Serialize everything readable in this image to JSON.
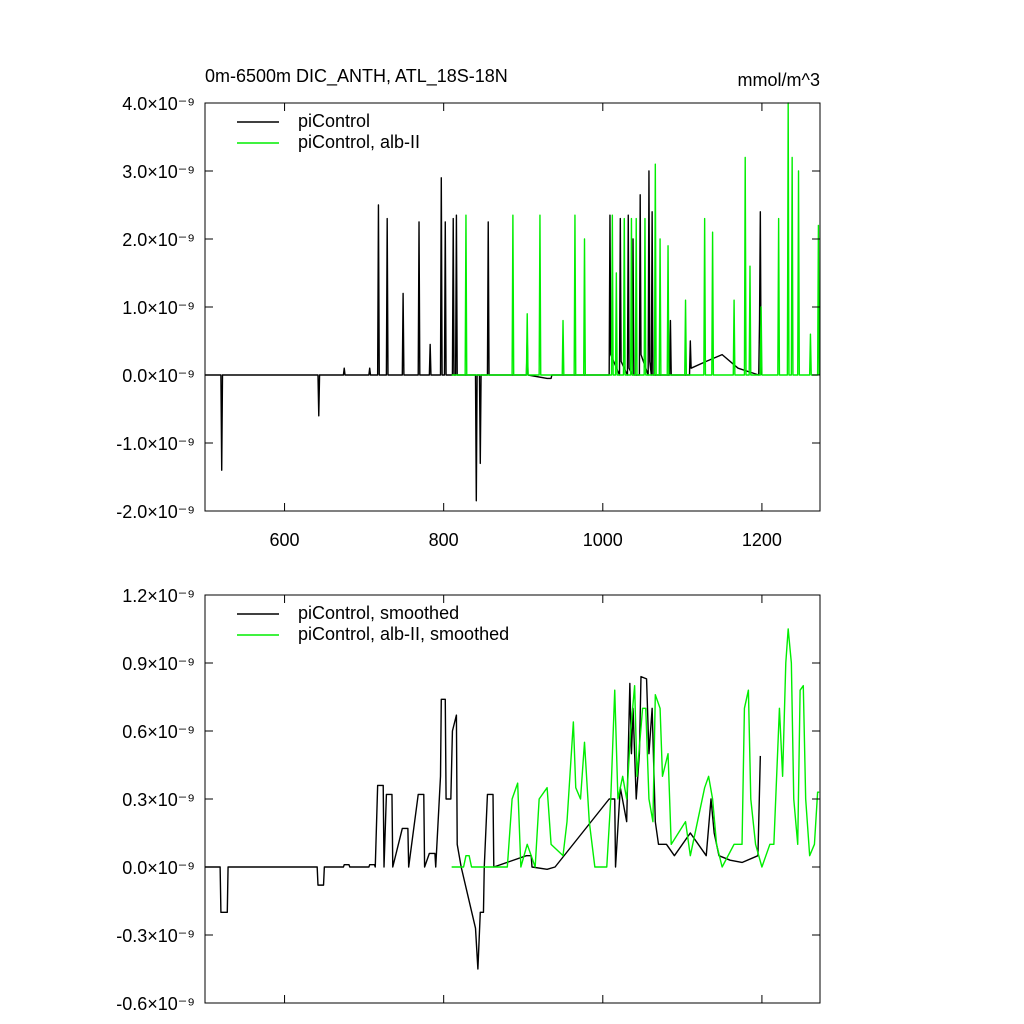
{
  "chart_data": [
    {
      "type": "line",
      "title": "0m-6500m DIC_ANTH, ATL_18S-18N",
      "unit": "mmol/m^3",
      "xlim": [
        500,
        1273
      ],
      "xticks": [
        600,
        800,
        1000,
        1200
      ],
      "ylim": [
        -2e-09,
        4e-09
      ],
      "yticks": [
        {
          "value": -2e-09,
          "label": "-2.0×10⁻⁹"
        },
        {
          "value": -1e-09,
          "label": "-1.0×10⁻⁹"
        },
        {
          "value": 0,
          "label": "0.0×10⁻⁹"
        },
        {
          "value": 1e-09,
          "label": "1.0×10⁻⁹"
        },
        {
          "value": 2e-09,
          "label": "2.0×10⁻⁹"
        },
        {
          "value": 3e-09,
          "label": "3.0×10⁻⁹"
        },
        {
          "value": 4e-09,
          "label": "4.0×10⁻⁹"
        }
      ],
      "legend": "top-left",
      "series": [
        {
          "name": "piControl",
          "color": "#000000",
          "x": [
            500,
            520,
            521,
            522,
            642,
            643,
            644,
            674,
            675,
            676,
            706,
            707,
            708,
            717,
            718,
            719,
            728,
            729,
            730,
            748,
            749,
            750,
            768,
            769,
            770,
            782,
            783,
            784,
            796,
            797,
            798,
            801,
            802,
            803,
            811,
            812,
            813,
            815,
            816,
            817,
            840,
            841,
            842,
            845,
            846,
            847,
            855,
            856,
            857,
            904,
            905,
            906,
            930,
            935,
            936,
            1008,
            1009,
            1010,
            1021,
            1022,
            1023,
            1031,
            1032,
            1033,
            1037,
            1038,
            1039,
            1046,
            1047,
            1048,
            1057,
            1058,
            1059,
            1061,
            1062,
            1063,
            1084,
            1085,
            1086,
            1109,
            1110,
            1111,
            1130,
            1150,
            1170,
            1196,
            1197,
            1198,
            1199
          ],
          "values": [
            0,
            0,
            -1.4e-09,
            0,
            0,
            -6e-10,
            0,
            0,
            1e-10,
            0,
            0,
            1e-10,
            0,
            0,
            2.5e-09,
            0,
            0,
            2.3e-09,
            0,
            0,
            1.2e-09,
            0,
            0,
            2.25e-09,
            0,
            0,
            4.5e-10,
            0,
            0,
            2.9e-09,
            0,
            0,
            2.25e-09,
            0,
            0,
            2.3e-09,
            0,
            0,
            2.35e-09,
            0,
            0,
            -1.85e-09,
            0,
            0,
            -1.3e-09,
            0,
            0,
            2.25e-09,
            0,
            0,
            5e-10,
            0,
            -5e-11,
            -5e-11,
            0,
            0,
            2.35e-09,
            3e-10,
            0,
            2.3e-09,
            2e-10,
            0,
            2.35e-09,
            1e-10,
            0,
            2e-09,
            0,
            0,
            2.65e-09,
            3e-10,
            0,
            3e-09,
            2e-10,
            0,
            2.4e-09,
            0,
            0,
            8e-10,
            0,
            0,
            5e-10,
            1e-10,
            2e-10,
            3e-10,
            1e-10,
            0,
            8e-10,
            2.4e-09,
            0
          ]
        },
        {
          "name": "piControl, alb-II",
          "color": "#00ee00",
          "x": [
            810,
            827,
            828,
            829,
            886,
            887,
            888,
            904,
            905,
            906,
            920,
            921,
            922,
            949,
            950,
            951,
            964,
            965,
            966,
            976,
            977,
            978,
            1011,
            1012,
            1013,
            1016,
            1017,
            1018,
            1026,
            1027,
            1028,
            1035,
            1036,
            1037,
            1041,
            1042,
            1043,
            1052,
            1053,
            1054,
            1065,
            1066,
            1067,
            1071,
            1072,
            1073,
            1081,
            1082,
            1083,
            1103,
            1104,
            1105,
            1127,
            1128,
            1129,
            1137,
            1138,
            1139,
            1164,
            1165,
            1166,
            1178,
            1179,
            1180,
            1184,
            1185,
            1186,
            1198,
            1199,
            1200,
            1220,
            1221,
            1222,
            1232,
            1233,
            1234,
            1237,
            1238,
            1239,
            1245,
            1246,
            1247,
            1260,
            1261,
            1262,
            1270,
            1271,
            1272
          ],
          "values": [
            0,
            0,
            2.35e-09,
            0,
            0,
            2.35e-09,
            0,
            0,
            9e-10,
            0,
            0,
            2.35e-09,
            0,
            0,
            8e-10,
            0,
            0,
            2.35e-09,
            0,
            0,
            2e-09,
            0,
            0,
            2.35e-09,
            0,
            0,
            1.5e-09,
            0,
            0,
            2.3e-09,
            0,
            0,
            2.3e-09,
            0,
            0,
            2.3e-09,
            0,
            0,
            2.3e-09,
            0,
            0,
            3.1e-09,
            0,
            0,
            2e-09,
            0,
            0,
            1.9e-09,
            0,
            0,
            1.1e-09,
            0,
            0,
            2.3e-09,
            0,
            0,
            2.1e-09,
            0,
            0,
            1.1e-09,
            0,
            0,
            3.2e-09,
            0,
            0,
            1.6e-09,
            0,
            0,
            1e-09,
            0,
            0,
            2.3e-09,
            0,
            0,
            4e-09,
            0,
            0,
            3.2e-09,
            0,
            0,
            3e-09,
            0,
            0,
            6e-10,
            0,
            0,
            2.2e-09,
            0
          ]
        }
      ]
    },
    {
      "type": "line",
      "xlim": [
        500,
        1273
      ],
      "xticks": [
        600,
        800,
        1000,
        1200
      ],
      "xtick_labels": false,
      "ylim": [
        -6e-10,
        1.2e-09
      ],
      "yticks": [
        {
          "value": -6e-10,
          "label": "-0.6×10⁻⁹"
        },
        {
          "value": -3e-10,
          "label": "-0.3×10⁻⁹"
        },
        {
          "value": 0,
          "label": "0.0×10⁻⁹"
        },
        {
          "value": 3e-10,
          "label": "0.3×10⁻⁹"
        },
        {
          "value": 6e-10,
          "label": "0.6×10⁻⁹"
        },
        {
          "value": 9e-10,
          "label": "0.9×10⁻⁹"
        },
        {
          "value": 1.2e-09,
          "label": "1.2×10⁻⁹"
        }
      ],
      "legend": "top-left",
      "series": [
        {
          "name": "piControl, smoothed",
          "color": "#000000",
          "x": [
            500,
            519,
            520,
            528,
            529,
            641,
            642,
            649,
            650,
            674,
            675,
            681,
            682,
            706,
            707,
            713,
            714,
            717,
            724,
            725,
            728,
            735,
            736,
            748,
            755,
            756,
            768,
            775,
            776,
            782,
            789,
            790,
            796,
            797,
            802,
            803,
            809,
            811,
            816,
            817,
            822,
            840,
            843,
            846,
            850,
            851,
            855,
            862,
            863,
            904,
            910,
            911,
            930,
            940,
            1008,
            1015,
            1016,
            1022,
            1030,
            1034,
            1036,
            1038,
            1042,
            1046,
            1048,
            1055,
            1058,
            1062,
            1066,
            1070,
            1080,
            1090,
            1110,
            1120,
            1130,
            1136,
            1140,
            1146,
            1160,
            1175,
            1195,
            1198
          ],
          "values": [
            0,
            0,
            -2e-10,
            -2e-10,
            0,
            0,
            -8e-11,
            -8e-11,
            0,
            0,
            1e-11,
            1e-11,
            0,
            0,
            1e-11,
            1e-11,
            0,
            3.6e-10,
            3.6e-10,
            0,
            3.2e-10,
            3.2e-10,
            0,
            1.7e-10,
            1.7e-10,
            0,
            3.2e-10,
            3.2e-10,
            0,
            6e-11,
            6e-11,
            0,
            4e-10,
            7.4e-10,
            7.4e-10,
            3e-10,
            3e-10,
            6e-10,
            6.7e-10,
            1e-10,
            0,
            -2.7e-10,
            -4.5e-10,
            -2e-10,
            -2e-10,
            0,
            3.2e-10,
            3.2e-10,
            0,
            5e-11,
            5e-11,
            0,
            -1e-11,
            0,
            3e-10,
            3e-10,
            0,
            3.5e-10,
            2e-10,
            8.1e-10,
            5e-10,
            7e-10,
            3e-10,
            5e-10,
            8.4e-10,
            8.3e-10,
            5e-10,
            7e-10,
            2e-10,
            1e-10,
            1e-10,
            5e-11,
            1.5e-10,
            1e-10,
            5e-11,
            3e-10,
            1.5e-10,
            5e-11,
            3e-11,
            2e-11,
            5e-11,
            4.9e-10
          ]
        },
        {
          "name": "piControl, alb-II, smoothed",
          "color": "#00ee00",
          "x": [
            810,
            825,
            828,
            832,
            835,
            880,
            886,
            893,
            897,
            905,
            915,
            920,
            930,
            935,
            950,
            955,
            963,
            966,
            972,
            977,
            983,
            990,
            1005,
            1010,
            1015,
            1019,
            1025,
            1030,
            1035,
            1040,
            1043,
            1050,
            1054,
            1058,
            1063,
            1066,
            1072,
            1075,
            1082,
            1086,
            1095,
            1104,
            1110,
            1128,
            1133,
            1138,
            1143,
            1150,
            1165,
            1175,
            1178,
            1183,
            1186,
            1192,
            1200,
            1210,
            1215,
            1222,
            1226,
            1230,
            1233,
            1237,
            1240,
            1245,
            1248,
            1252,
            1255,
            1260,
            1266,
            1270,
            1272
          ],
          "values": [
            0,
            0,
            5e-11,
            5e-11,
            0,
            0,
            3e-10,
            3.7e-10,
            0,
            1e-10,
            0,
            3e-10,
            3.5e-10,
            1e-10,
            5e-11,
            2e-10,
            6.4e-10,
            3.5e-10,
            3e-10,
            5.5e-10,
            2e-10,
            0,
            0,
            3e-10,
            7.8e-10,
            3e-10,
            4e-10,
            3e-10,
            6e-10,
            8e-10,
            4e-10,
            7e-10,
            7e-10,
            3e-10,
            2e-10,
            7.6e-10,
            7e-10,
            4e-10,
            5e-10,
            1e-10,
            1.5e-10,
            2e-10,
            5e-11,
            3.5e-10,
            4e-10,
            3e-10,
            1e-10,
            0,
            1e-10,
            1e-10,
            7e-10,
            7.8e-10,
            3e-10,
            1e-10,
            0,
            1e-10,
            1e-10,
            7e-10,
            4e-10,
            9e-10,
            1.05e-09,
            9e-10,
            3e-10,
            1e-10,
            7.8e-10,
            8e-10,
            3e-10,
            5e-11,
            1e-10,
            3.3e-10,
            3.3e-10
          ]
        }
      ]
    }
  ]
}
